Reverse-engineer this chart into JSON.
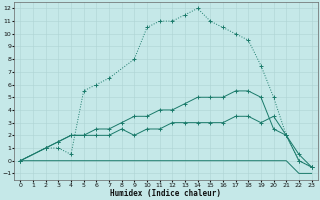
{
  "xlabel": "Humidex (Indice chaleur)",
  "bg_color": "#c5e8e8",
  "grid_color": "#aed4d4",
  "line_color": "#1a7a6a",
  "xlim": [
    -0.5,
    23.5
  ],
  "ylim": [
    -1.5,
    12.5
  ],
  "xticks": [
    0,
    1,
    2,
    3,
    4,
    5,
    6,
    7,
    8,
    9,
    10,
    11,
    12,
    13,
    14,
    15,
    16,
    17,
    18,
    19,
    20,
    21,
    22,
    23
  ],
  "yticks": [
    -1,
    0,
    1,
    2,
    3,
    4,
    5,
    6,
    7,
    8,
    9,
    10,
    11,
    12
  ],
  "line1_x": [
    0,
    2,
    3,
    4,
    5,
    6,
    7,
    9,
    10,
    11,
    12,
    13,
    14,
    15,
    16,
    17,
    18,
    19,
    20,
    21,
    22,
    23
  ],
  "line1_y": [
    0,
    1,
    1,
    0.5,
    5.5,
    6,
    6.5,
    8,
    10.5,
    11,
    11,
    11.5,
    12,
    11,
    10.5,
    10,
    9.5,
    7.5,
    5,
    2,
    0,
    -0.5
  ],
  "line2_x": [
    0,
    4,
    5,
    6,
    7,
    8,
    9,
    10,
    11,
    12,
    13,
    14,
    15,
    16,
    17,
    18,
    19,
    20,
    21,
    22,
    23
  ],
  "line2_y": [
    0,
    0,
    0,
    0,
    0,
    0,
    0,
    0,
    0,
    0,
    0,
    0,
    0,
    0,
    0,
    0,
    0,
    0,
    0,
    -1,
    -1
  ],
  "line3_x": [
    0,
    2,
    3,
    4,
    5,
    6,
    7,
    8,
    9,
    10,
    11,
    12,
    13,
    14,
    15,
    16,
    17,
    18,
    19,
    20,
    21,
    22,
    23
  ],
  "line3_y": [
    0,
    1,
    1.5,
    2,
    2,
    2.5,
    2.5,
    3,
    3.5,
    3.5,
    4,
    4,
    4.5,
    5,
    5,
    5,
    5.5,
    5.5,
    5,
    2.5,
    2,
    0.5,
    -0.5
  ],
  "line4_x": [
    0,
    2,
    3,
    4,
    5,
    6,
    7,
    8,
    9,
    10,
    11,
    12,
    13,
    14,
    15,
    16,
    17,
    18,
    19,
    20,
    21,
    22,
    23
  ],
  "line4_y": [
    0,
    1,
    1.5,
    2,
    2,
    2,
    2,
    2.5,
    2,
    2.5,
    2.5,
    3,
    3,
    3,
    3,
    3,
    3.5,
    3.5,
    3,
    3.5,
    2,
    0,
    -0.5
  ]
}
